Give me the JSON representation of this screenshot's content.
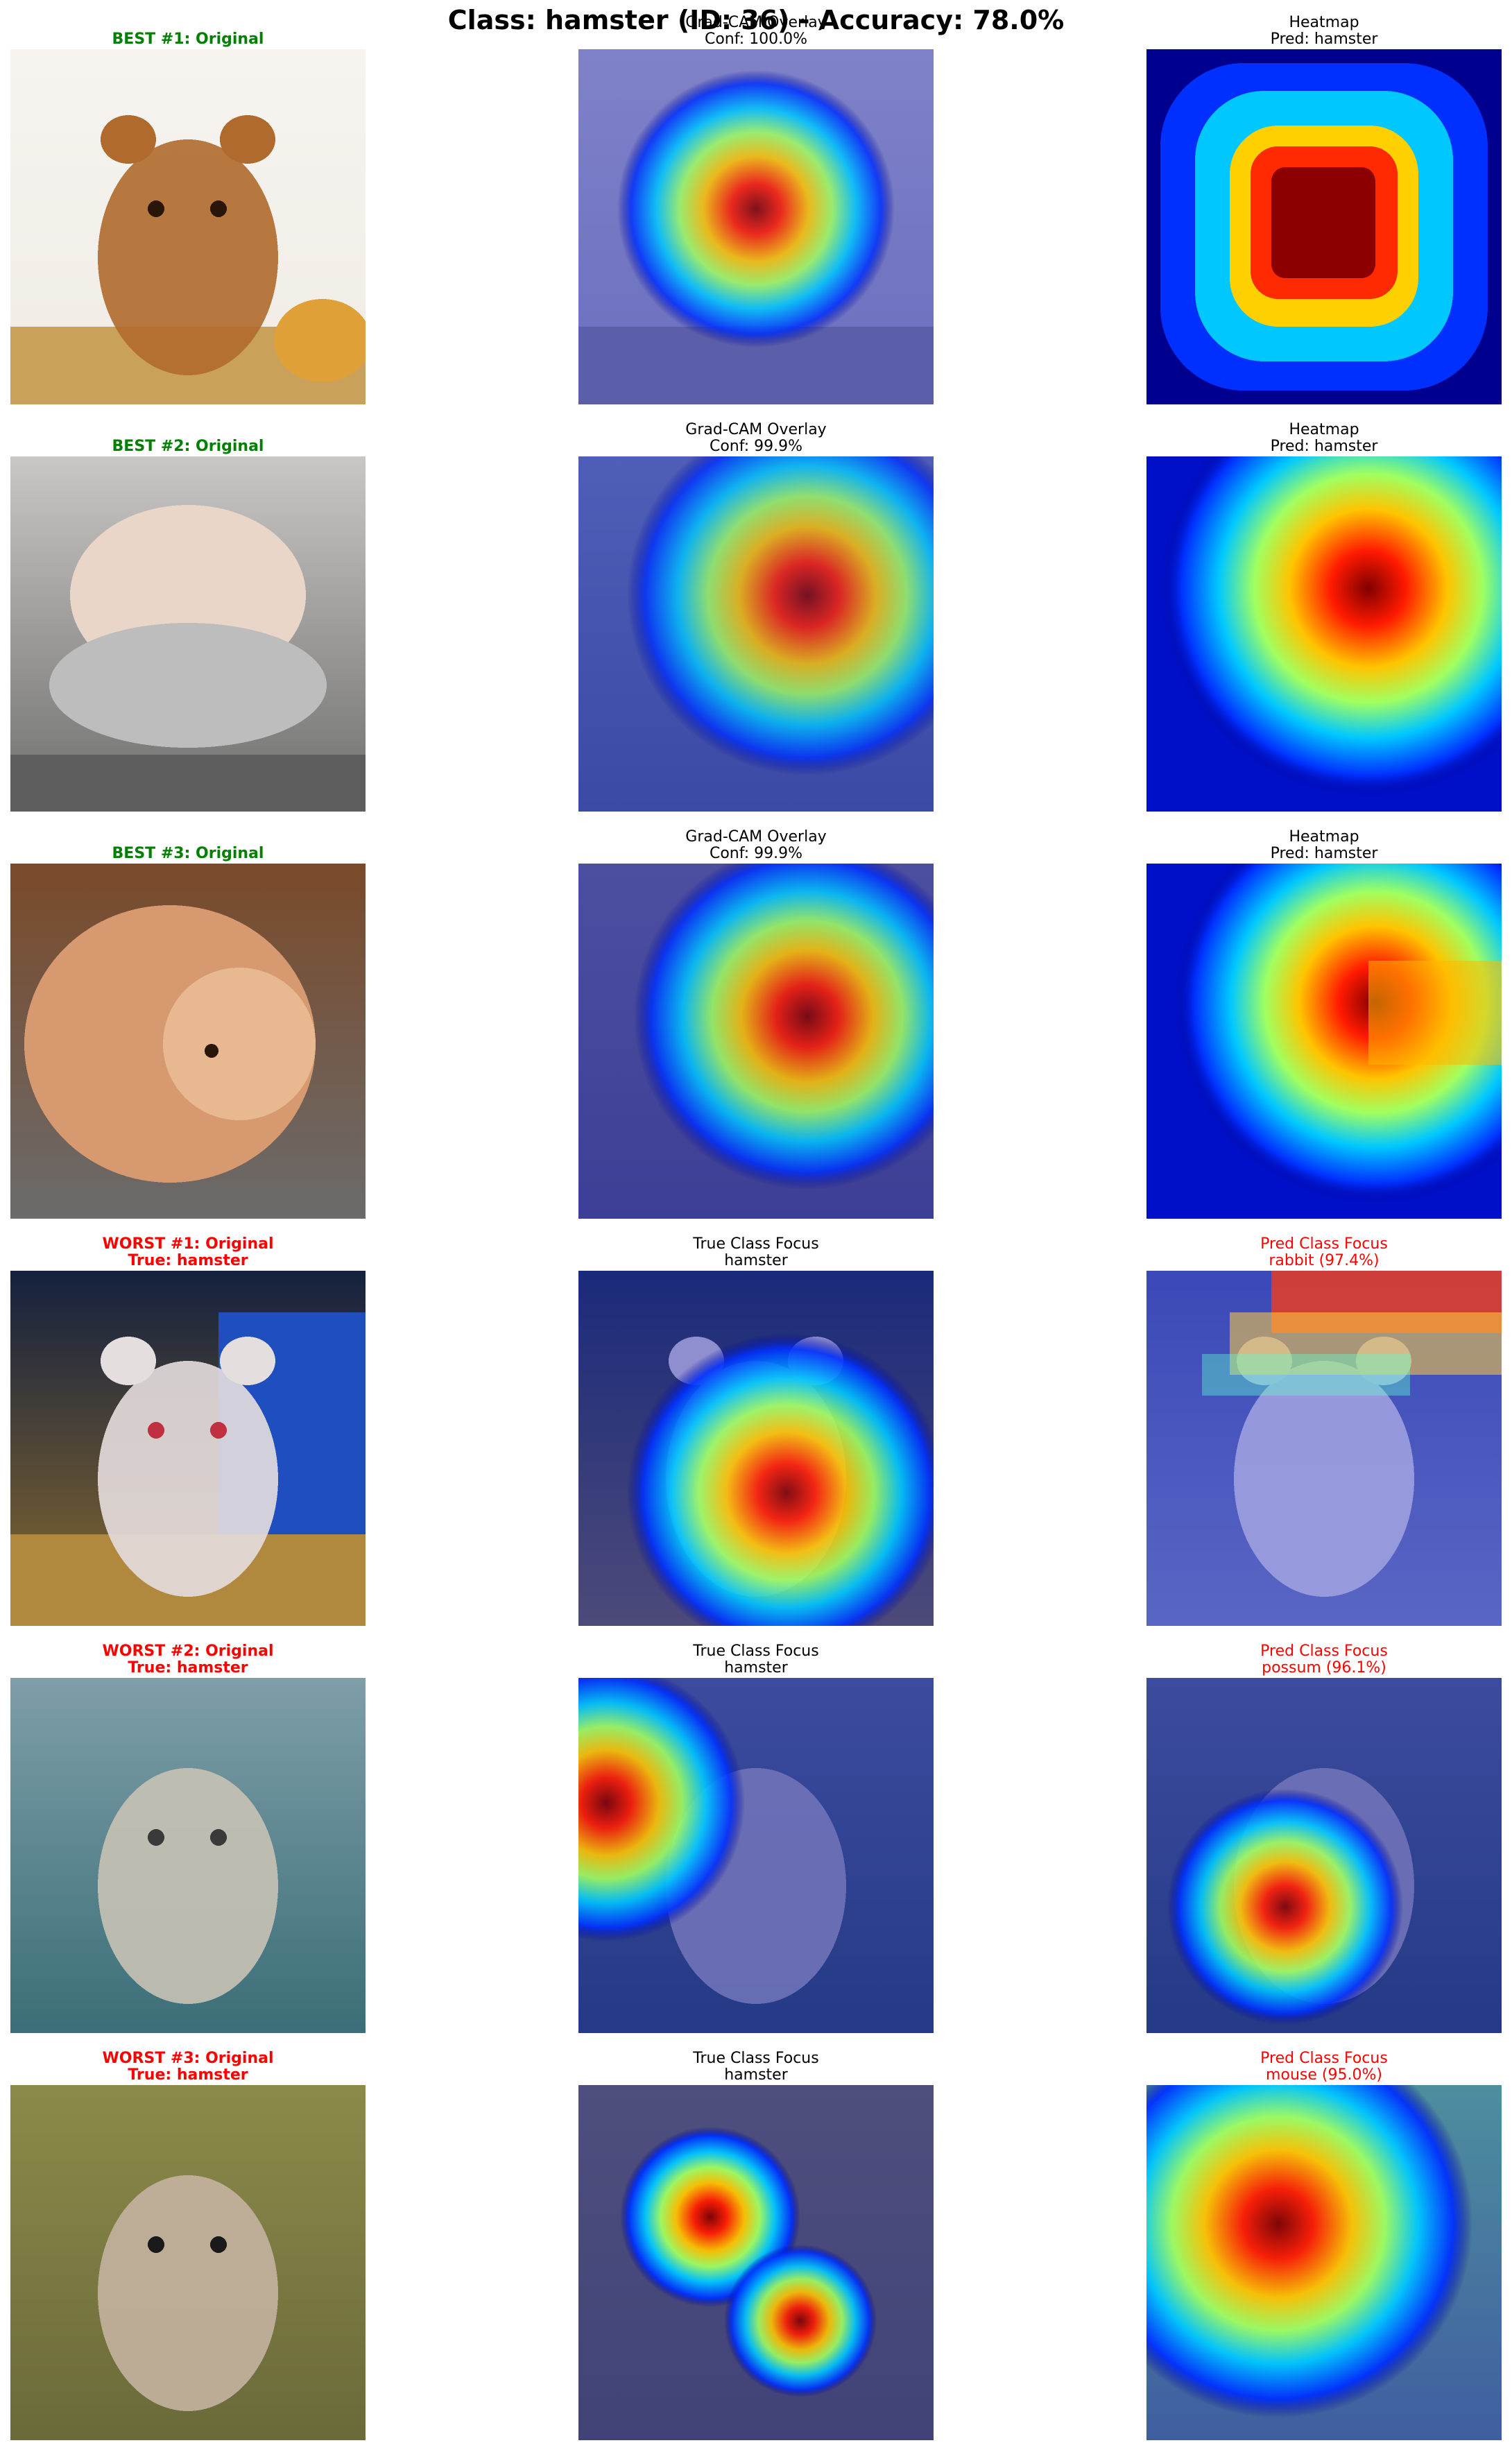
{
  "figure": {
    "title": "Class: hamster (ID: 36) - Accuracy: 78.0%"
  },
  "rows": [
    {
      "kind": "best",
      "original": {
        "line1": "BEST #1: Original",
        "line2": ""
      },
      "middle": {
        "line1": "Grad-CAM Overlay",
        "line2": "Conf: 100.0%"
      },
      "right": {
        "line1": "Heatmap",
        "line2": "Pred: hamster"
      }
    },
    {
      "kind": "best",
      "original": {
        "line1": "BEST #2: Original",
        "line2": ""
      },
      "middle": {
        "line1": "Grad-CAM Overlay",
        "line2": "Conf: 99.9%"
      },
      "right": {
        "line1": "Heatmap",
        "line2": "Pred: hamster"
      }
    },
    {
      "kind": "best",
      "original": {
        "line1": "BEST #3: Original",
        "line2": ""
      },
      "middle": {
        "line1": "Grad-CAM Overlay",
        "line2": "Conf: 99.9%"
      },
      "right": {
        "line1": "Heatmap",
        "line2": "Pred: hamster"
      }
    },
    {
      "kind": "worst",
      "original": {
        "line1": "WORST #1: Original",
        "line2": "True: hamster"
      },
      "middle": {
        "line1": "True Class Focus",
        "line2": "hamster"
      },
      "right": {
        "line1": "Pred Class Focus",
        "line2": "rabbit (97.4%)"
      }
    },
    {
      "kind": "worst",
      "original": {
        "line1": "WORST #2: Original",
        "line2": "True: hamster"
      },
      "middle": {
        "line1": "True Class Focus",
        "line2": "hamster"
      },
      "right": {
        "line1": "Pred Class Focus",
        "line2": "possum (96.1%)"
      }
    },
    {
      "kind": "worst",
      "original": {
        "line1": "WORST #3: Original",
        "line2": "True: hamster"
      },
      "middle": {
        "line1": "True Class Focus",
        "line2": "hamster"
      },
      "right": {
        "line1": "Pred Class Focus",
        "line2": "mouse (95.0%)"
      }
    }
  ],
  "colors": {
    "best_title": "#008000",
    "worst_title": "#ff0000",
    "pred_title": "#ff0000",
    "plain_title": "#000000"
  }
}
